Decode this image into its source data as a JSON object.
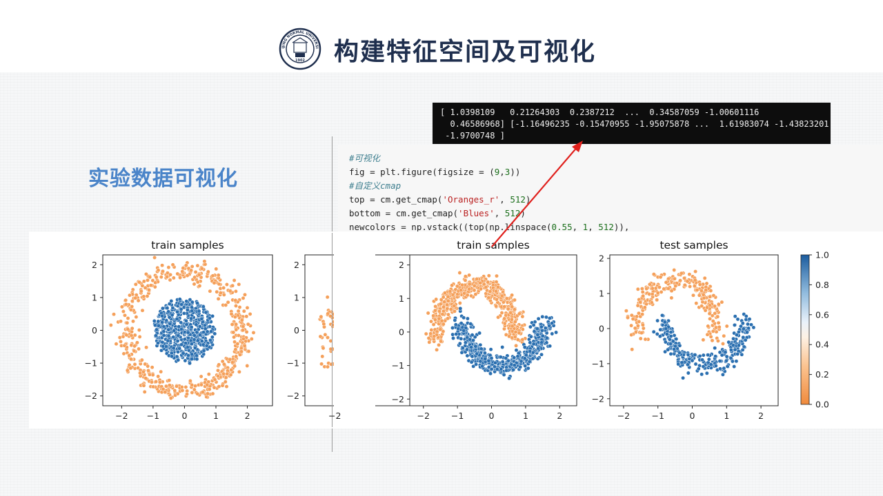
{
  "slide": {
    "title": "构建特征空间及可视化",
    "subtitle": "实验数据可视化",
    "logo_text_top": "BEIJING NORMAL UNIVERSITY",
    "logo_year": "1902"
  },
  "terminal": {
    "lines": [
      "[ 1.0398109   0.21264303  0.2387212  ...  0.34587059 -1.00601116",
      "  0.46586968] [-1.16496235 -0.15470955 -1.95075878 ...  1.61983074 -1.43823201",
      " -1.9700748 ]"
    ]
  },
  "code": {
    "lines": [
      {
        "kind": "comment",
        "text": "#可视化"
      },
      {
        "kind": "code",
        "parts": [
          {
            "t": "fig = plt.figure(figsize = ("
          },
          {
            "t": "9",
            "k": "n"
          },
          {
            "t": ","
          },
          {
            "t": "3",
            "k": "n"
          },
          {
            "t": "))"
          }
        ]
      },
      {
        "kind": "comment",
        "text": "#自定义cmap"
      },
      {
        "kind": "code",
        "parts": [
          {
            "t": "top = cm.get_cmap("
          },
          {
            "t": "'Oranges_r'",
            "k": "s"
          },
          {
            "t": ", "
          },
          {
            "t": "512",
            "k": "n"
          },
          {
            "t": ")"
          }
        ]
      },
      {
        "kind": "code",
        "parts": [
          {
            "t": "bottom = cm.get_cmap("
          },
          {
            "t": "'Blues'",
            "k": "s"
          },
          {
            "t": ", "
          },
          {
            "t": "512",
            "k": "n"
          },
          {
            "t": ")"
          }
        ]
      },
      {
        "kind": "code",
        "parts": [
          {
            "t": "newcolors = np.vstack((top(np.linspace("
          },
          {
            "t": "0.55",
            "k": "n"
          },
          {
            "t": ", "
          },
          {
            "t": "1",
            "k": "n"
          },
          {
            "t": ", "
          },
          {
            "t": "512",
            "k": "n"
          },
          {
            "t": ")),"
          }
        ]
      }
    ]
  },
  "colors": {
    "class0": "#f5a05a",
    "class1": "#2a6fb0",
    "title": "#1f2f4e",
    "subtitle": "#4a84c9",
    "arrow": "#e0201c"
  },
  "colorbar": {
    "ticks": [
      "0.0",
      "0.2",
      "0.4",
      "0.6",
      "0.8",
      "1.0"
    ]
  },
  "chart_data": [
    {
      "type": "scatter",
      "title": "train samples",
      "dataset": "circles",
      "xlim": [
        -2.6,
        2.8
      ],
      "ylim": [
        -2.3,
        2.3
      ],
      "xticks": [
        -2,
        -1,
        0,
        1,
        2
      ],
      "yticks": [
        -2,
        -1,
        0,
        1,
        2
      ],
      "series": [
        {
          "label": "0",
          "shape": "ring",
          "radius_range": [
            1.55,
            2.15
          ]
        },
        {
          "label": "1",
          "shape": "disk",
          "radius_max": 1.0
        }
      ]
    },
    {
      "type": "scatter",
      "title": "",
      "dataset": "circles-partial",
      "ylim": [
        -2.3,
        2.3
      ],
      "yticks": [
        -2,
        -1,
        0,
        1,
        2
      ],
      "series": [
        {
          "label": "0",
          "shape": "ring"
        },
        {
          "label": "1",
          "shape": "disk"
        }
      ]
    },
    {
      "type": "scatter",
      "title": "train samples",
      "dataset": "moons",
      "xlim": [
        -2.4,
        2.5
      ],
      "ylim": [
        -2.2,
        2.3
      ],
      "xticks": [
        -2,
        -1,
        0,
        1,
        2
      ],
      "yticks": [
        -2,
        -1,
        0,
        1,
        2
      ],
      "series": [
        {
          "label": "0",
          "shape": "upper-moon",
          "center": [
            -0.45,
            -0.2
          ],
          "radius": 1.5
        },
        {
          "label": "1",
          "shape": "lower-moon",
          "center": [
            0.35,
            0.3
          ],
          "radius": 1.5
        }
      ]
    },
    {
      "type": "scatter",
      "title": "test samples",
      "dataset": "moons",
      "xlim": [
        -2.4,
        2.5
      ],
      "ylim": [
        -2.2,
        2.1
      ],
      "xticks": [
        -2,
        -1,
        0,
        1,
        2
      ],
      "yticks": [
        -2,
        -1,
        0,
        1,
        2
      ],
      "series": [
        {
          "label": "0",
          "shape": "upper-moon",
          "center": [
            -0.45,
            -0.2
          ],
          "radius": 1.5
        },
        {
          "label": "1",
          "shape": "lower-moon",
          "center": [
            0.35,
            0.3
          ],
          "radius": 1.5
        }
      ]
    }
  ]
}
